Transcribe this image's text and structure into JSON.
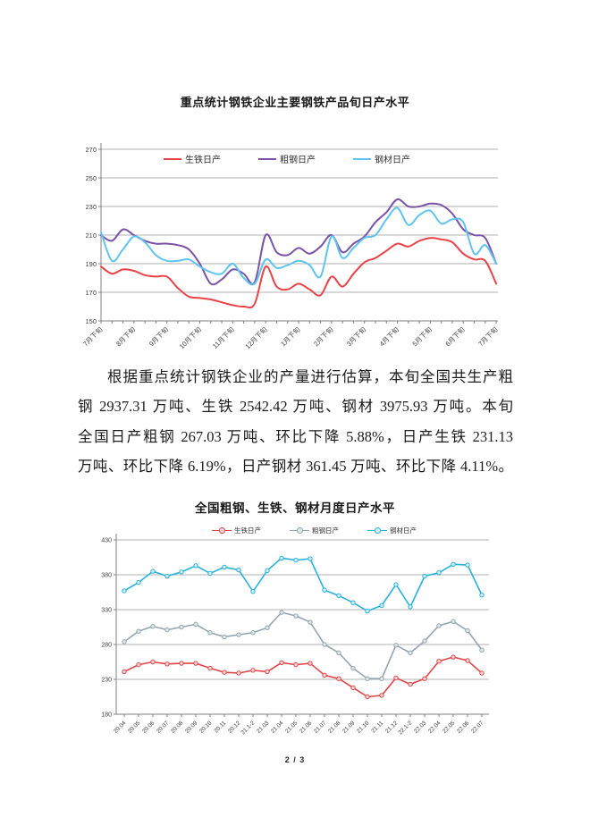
{
  "page": {
    "number_label": "2 / 3"
  },
  "paragraph": {
    "lines": [
      "根据重点统计钢铁企业的产量进行估算，本旬全国共生产粗",
      "钢 2937.31 万吨、生铁 2542.42 万吨、钢材 3975.93 万吨。本旬",
      "全国日产粗钢 267.03 万吨、环比下降 5.88%，日产生铁 231.13",
      "万吨、环比下降 6.19%，日产钢材 361.45 万吨、环比下降 4.11%。"
    ]
  },
  "chart_data": [
    {
      "type": "line",
      "title": "重点统计钢铁企业主要钢铁产品旬日产水平",
      "xlabel": "",
      "ylabel": "",
      "ylim": [
        150,
        270
      ],
      "yticks": [
        150,
        170,
        190,
        210,
        230,
        250,
        270
      ],
      "grid": true,
      "legend_position": "top-inside",
      "smooth": true,
      "markers": false,
      "x_labels": [
        "7月下旬",
        "8月下旬",
        "9月下旬",
        "10月下旬",
        "11月下旬",
        "12月下旬",
        "1月下旬",
        "2月下旬",
        "3月下旬",
        "4月下旬",
        "5月下旬",
        "6月下旬",
        "7月下旬"
      ],
      "label_every": 3,
      "series": [
        {
          "name": "生铁日产",
          "color": "#ea4247",
          "values": [
            188,
            183,
            186,
            185,
            182,
            181,
            181,
            173,
            167,
            166,
            165,
            163,
            161,
            160,
            162,
            188,
            174,
            172,
            176,
            172,
            168,
            181,
            174,
            183,
            191,
            194,
            199,
            204,
            202,
            206,
            208,
            207,
            205,
            197,
            193,
            192,
            176
          ]
        },
        {
          "name": "粗钢日产",
          "color": "#7b52a5",
          "values": [
            210,
            206,
            214,
            210,
            206,
            204,
            204,
            203,
            200,
            190,
            176,
            179,
            186,
            183,
            177,
            210,
            198,
            196,
            201,
            197,
            202,
            210,
            198,
            204,
            209,
            219,
            226,
            235,
            230,
            230,
            232,
            231,
            225,
            214,
            210,
            208,
            190
          ]
        },
        {
          "name": "钢材日产",
          "color": "#5ec4ef",
          "values": [
            212,
            192,
            200,
            209,
            205,
            196,
            192,
            192,
            193,
            188,
            184,
            183,
            190,
            180,
            176,
            193,
            187,
            189,
            192,
            189,
            181,
            209,
            194,
            201,
            208,
            210,
            221,
            229,
            217,
            224,
            227,
            218,
            221,
            219,
            197,
            203,
            190
          ]
        }
      ]
    },
    {
      "type": "line",
      "title": "全国粗钢、生铁、钢材月度日产水平",
      "xlabel": "",
      "ylabel": "",
      "ylim": [
        180,
        430
      ],
      "yticks": [
        180,
        230,
        280,
        330,
        380,
        430
      ],
      "grid": true,
      "legend_position": "top",
      "smooth": false,
      "markers": true,
      "categories": [
        "20.04",
        "20.05",
        "20.06",
        "20.07",
        "20.08",
        "20.09",
        "20.10",
        "20.11",
        "20.12",
        "21.1-2",
        "21.03",
        "21.04",
        "21.05",
        "21.06",
        "21.07",
        "21.08",
        "21.09",
        "21.10",
        "21.11",
        "21.12",
        "22.1-2",
        "22.03",
        "22.04",
        "22.05",
        "22.06",
        "22.07"
      ],
      "series": [
        {
          "name": "生铁日产",
          "color": "#e34547",
          "marker_fill": "#f7d6d6",
          "values": [
            241,
            251,
            255,
            252,
            253,
            253,
            246,
            240,
            239,
            243,
            241,
            254,
            251,
            253,
            236,
            231,
            218,
            205,
            207,
            232,
            223,
            231,
            256,
            262,
            257,
            239
          ]
        },
        {
          "name": "粗钢日产",
          "color": "#93a5b3",
          "marker_fill": "#dfe8e0",
          "values": [
            284,
            299,
            306,
            301,
            305,
            309,
            297,
            291,
            294,
            297,
            304,
            326,
            321,
            312,
            280,
            268,
            246,
            231,
            231,
            279,
            268,
            285,
            307,
            313,
            300,
            272
          ]
        },
        {
          "name": "钢材日产",
          "color": "#27b2dc",
          "marker_fill": "#d5eef7",
          "values": [
            357,
            369,
            385,
            378,
            384,
            393,
            382,
            391,
            387,
            356,
            386,
            404,
            401,
            403,
            358,
            350,
            340,
            328,
            336,
            366,
            334,
            378,
            383,
            395,
            394,
            351
          ]
        }
      ]
    }
  ]
}
